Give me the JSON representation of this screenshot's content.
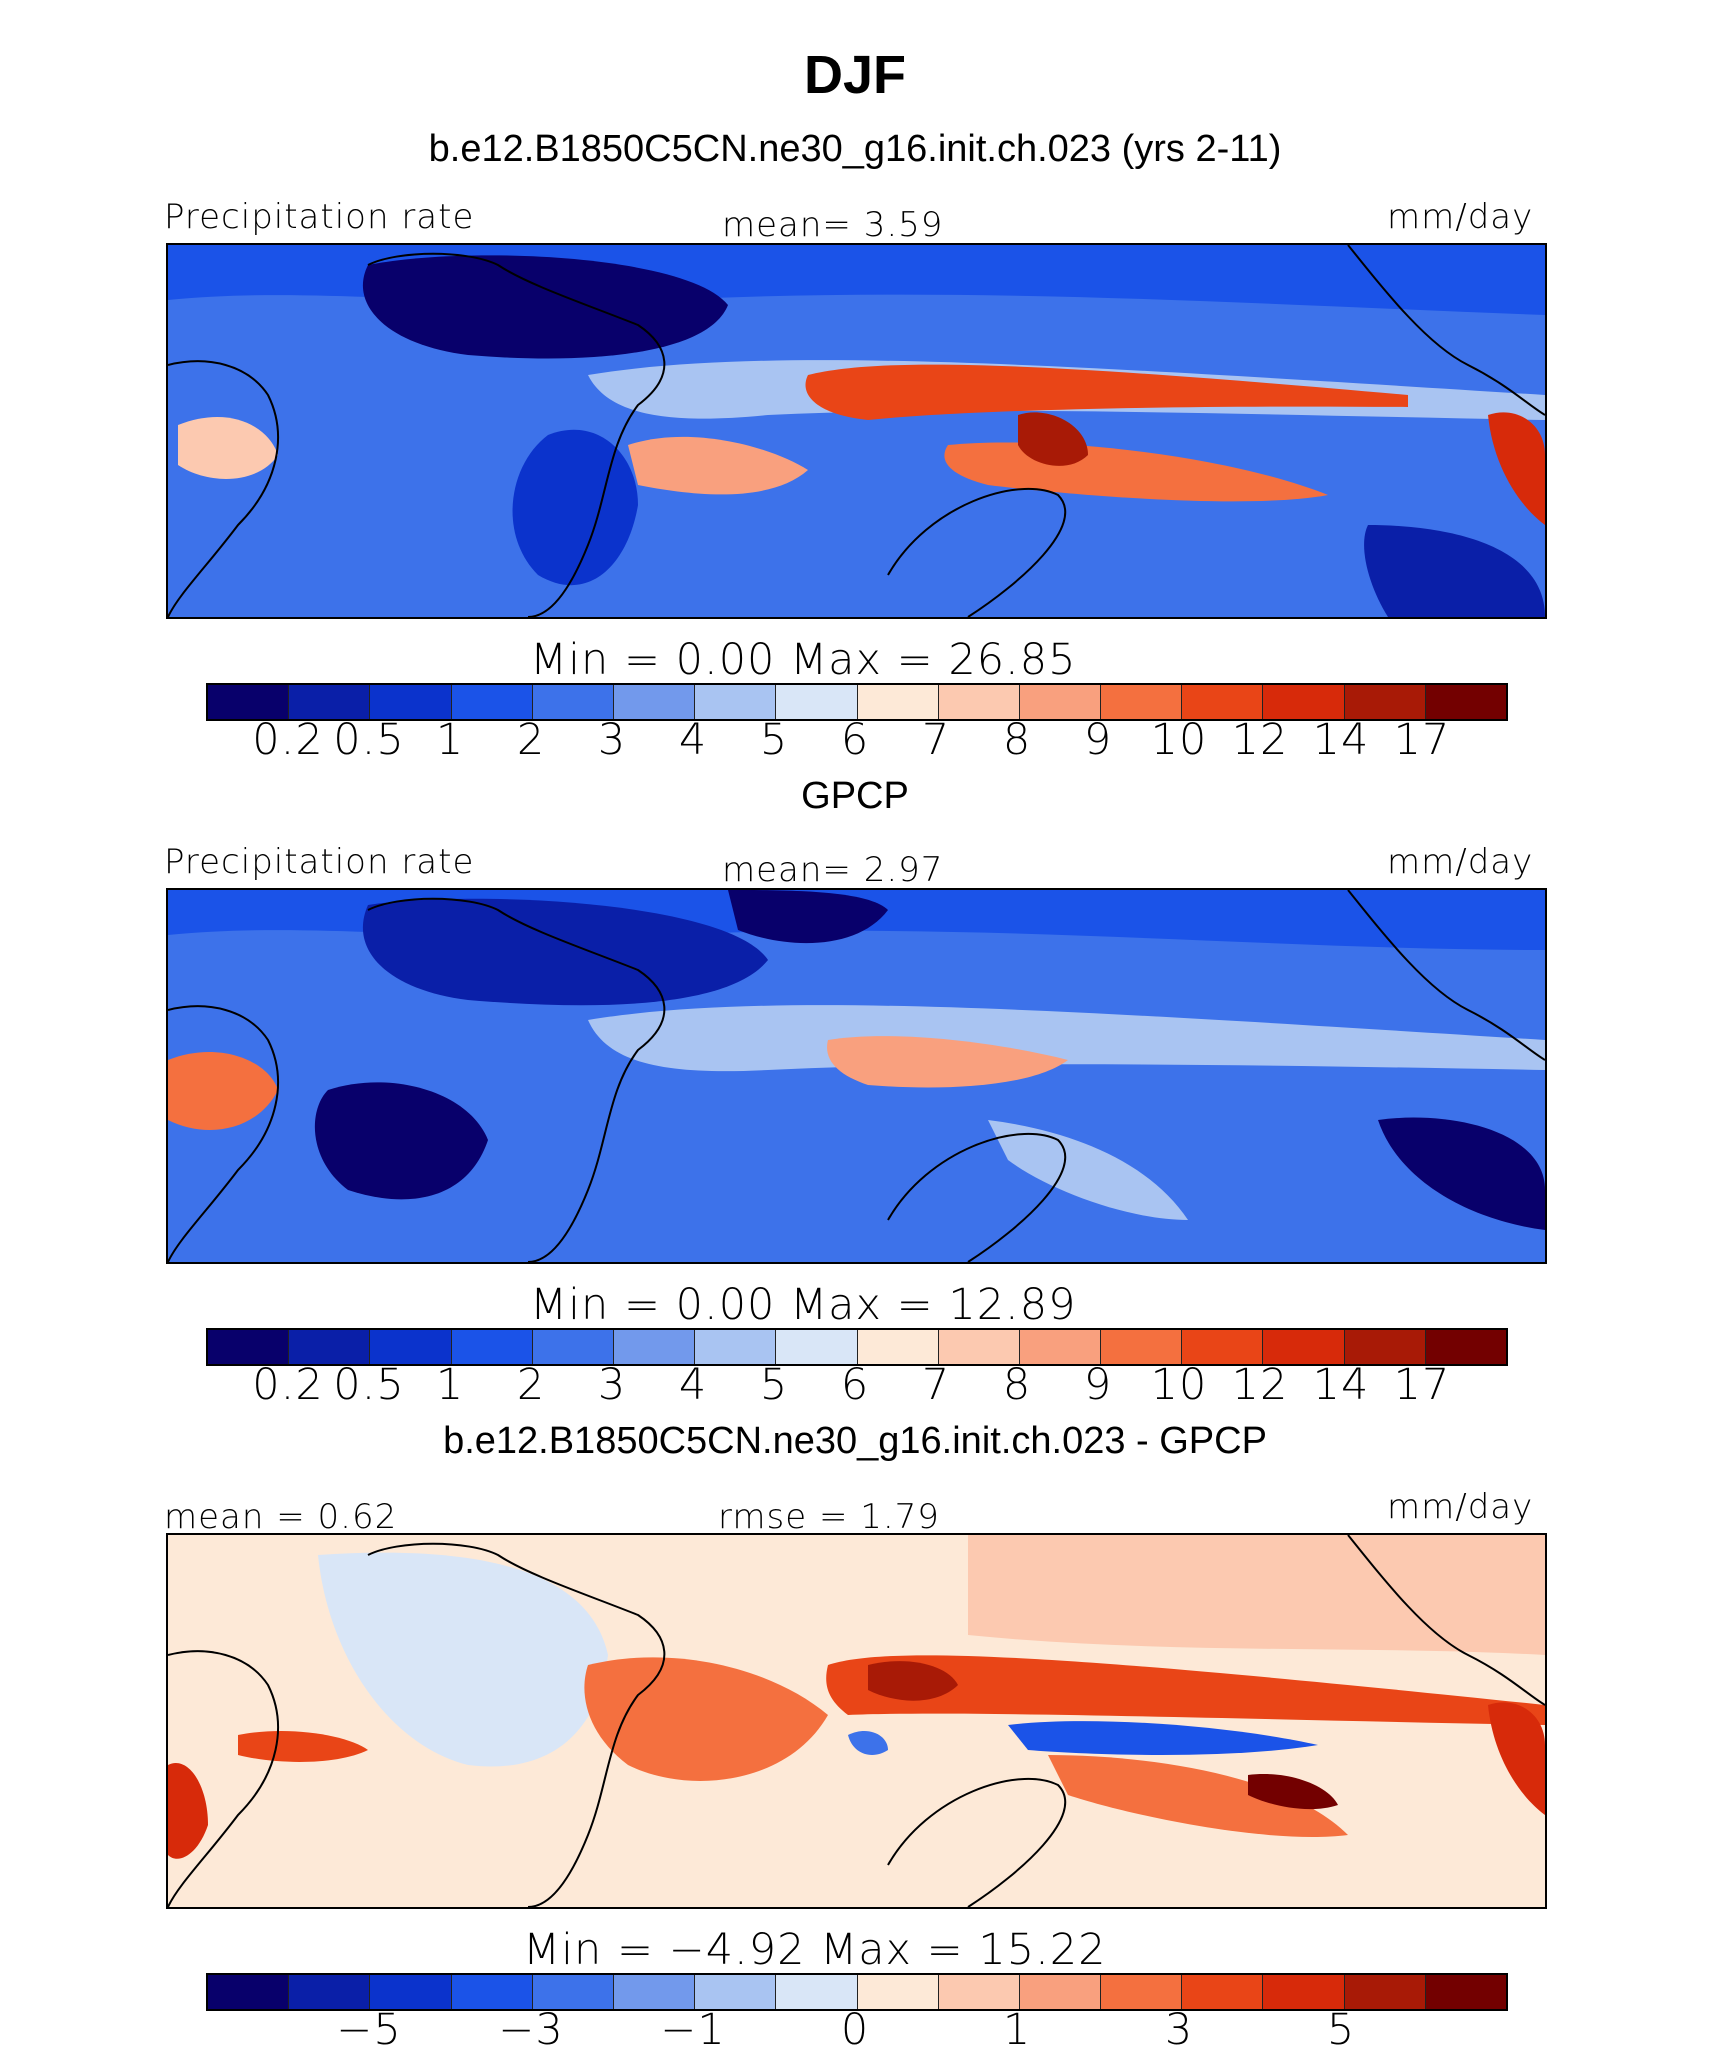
{
  "main_title": "DJF",
  "colors": {
    "scale": [
      "#08006b",
      "#0a1fa8",
      "#0b33cc",
      "#1b53e8",
      "#3d72ea",
      "#7299ec",
      "#a9c4f2",
      "#d9e6f7",
      "#fde9d7",
      "#fcc9b0",
      "#f9a07e",
      "#f4703f",
      "#e94517",
      "#d72a0a",
      "#a81a06",
      "#730000"
    ],
    "coastline": "#000000"
  },
  "panels": [
    {
      "title": "b.e12.B1850C5CN.ne30_g16.init.ch.023 (yrs 2-11)",
      "left_label": "Precipitation  rate",
      "center_label": "mean=     3.59",
      "right_label": "mm/day",
      "minmax": "Min  =       0.00  Max  =     26.85",
      "ticks": [
        "0.2",
        "0.5",
        "1",
        "2",
        "3",
        "4",
        "5",
        "6",
        "7",
        "8",
        "9",
        "10",
        "12",
        "14",
        "17"
      ]
    },
    {
      "title": "GPCP",
      "left_label": "Precipitation  rate",
      "center_label": "mean=     2.97",
      "right_label": "mm/day",
      "minmax": "Min  =       0.00  Max  =     12.89",
      "ticks": [
        "0.2",
        "0.5",
        "1",
        "2",
        "3",
        "4",
        "5",
        "6",
        "7",
        "8",
        "9",
        "10",
        "12",
        "14",
        "17"
      ]
    },
    {
      "title": "b.e12.B1850C5CN.ne30_g16.init.ch.023 - GPCP",
      "left_label": "mean  =     0.62",
      "center_label": "rmse  =     1.79",
      "right_label": "mm/day",
      "minmax": "Min  =    −4.92  Max  =     15.22",
      "ticks": [
        "−5",
        "−3",
        "−1",
        "0",
        "1",
        "3",
        "5"
      ]
    }
  ]
}
